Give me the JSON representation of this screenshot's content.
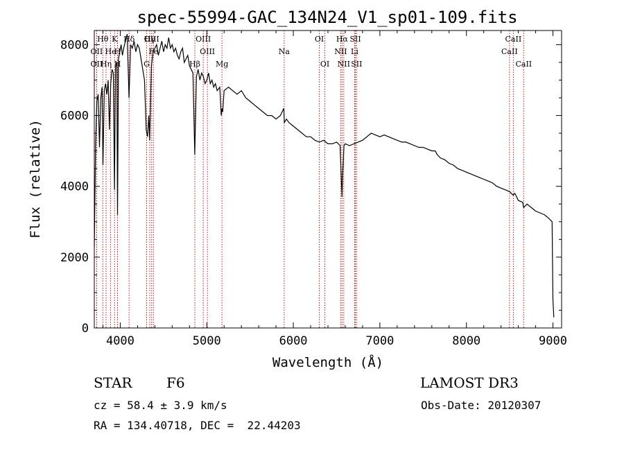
{
  "chart_data": {
    "type": "line",
    "title": "spec-55994-GAC_134N24_V1_sp01-109.fits",
    "xlabel": "Wavelength (Å)",
    "ylabel": "Flux (relative)",
    "xlim": [
      3700,
      9100
    ],
    "ylim": [
      0,
      8400
    ],
    "xticks": [
      4000,
      5000,
      6000,
      7000,
      8000,
      9000
    ],
    "yticks": [
      0,
      2000,
      4000,
      6000,
      8000
    ],
    "series": [
      {
        "name": "spectrum",
        "points": [
          [
            3700,
            2300
          ],
          [
            3715,
            5200
          ],
          [
            3730,
            6400
          ],
          [
            3745,
            6600
          ],
          [
            3760,
            5100
          ],
          [
            3775,
            6500
          ],
          [
            3790,
            6800
          ],
          [
            3800,
            4600
          ],
          [
            3815,
            6700
          ],
          [
            3830,
            6900
          ],
          [
            3845,
            6600
          ],
          [
            3860,
            7000
          ],
          [
            3875,
            5600
          ],
          [
            3890,
            6900
          ],
          [
            3905,
            7300
          ],
          [
            3920,
            7200
          ],
          [
            3933,
            3900
          ],
          [
            3945,
            7400
          ],
          [
            3960,
            7500
          ],
          [
            3968,
            3200
          ],
          [
            3980,
            7600
          ],
          [
            3995,
            7800
          ],
          [
            4010,
            8000
          ],
          [
            4025,
            7700
          ],
          [
            4040,
            7900
          ],
          [
            4060,
            8100
          ],
          [
            4080,
            8300
          ],
          [
            4101,
            6500
          ],
          [
            4120,
            8000
          ],
          [
            4140,
            7900
          ],
          [
            4160,
            8100
          ],
          [
            4180,
            7800
          ],
          [
            4200,
            8000
          ],
          [
            4220,
            7900
          ],
          [
            4240,
            7600
          ],
          [
            4260,
            7300
          ],
          [
            4280,
            7000
          ],
          [
            4300,
            5600
          ],
          [
            4315,
            5400
          ],
          [
            4330,
            6000
          ],
          [
            4340,
            5300
          ],
          [
            4360,
            7400
          ],
          [
            4380,
            7800
          ],
          [
            4400,
            7900
          ],
          [
            4420,
            8000
          ],
          [
            4440,
            7700
          ],
          [
            4460,
            7900
          ],
          [
            4480,
            8100
          ],
          [
            4500,
            7800
          ],
          [
            4520,
            8000
          ],
          [
            4540,
            7900
          ],
          [
            4560,
            8200
          ],
          [
            4580,
            7900
          ],
          [
            4600,
            8000
          ],
          [
            4620,
            7800
          ],
          [
            4640,
            7900
          ],
          [
            4660,
            7700
          ],
          [
            4680,
            7600
          ],
          [
            4700,
            7800
          ],
          [
            4720,
            7900
          ],
          [
            4740,
            7500
          ],
          [
            4760,
            7600
          ],
          [
            4780,
            7700
          ],
          [
            4800,
            7400
          ],
          [
            4820,
            7300
          ],
          [
            4840,
            7200
          ],
          [
            4861,
            4900
          ],
          [
            4880,
            7100
          ],
          [
            4900,
            7300
          ],
          [
            4920,
            7000
          ],
          [
            4940,
            7200
          ],
          [
            4960,
            7100
          ],
          [
            4980,
            6900
          ],
          [
            5000,
            7000
          ],
          [
            5020,
            7200
          ],
          [
            5040,
            6900
          ],
          [
            5060,
            7000
          ],
          [
            5080,
            6800
          ],
          [
            5100,
            6900
          ],
          [
            5120,
            6700
          ],
          [
            5150,
            6800
          ],
          [
            5167,
            6000
          ],
          [
            5175,
            6200
          ],
          [
            5184,
            6100
          ],
          [
            5200,
            6700
          ],
          [
            5250,
            6800
          ],
          [
            5300,
            6700
          ],
          [
            5350,
            6600
          ],
          [
            5400,
            6700
          ],
          [
            5450,
            6500
          ],
          [
            5500,
            6400
          ],
          [
            5550,
            6300
          ],
          [
            5600,
            6200
          ],
          [
            5650,
            6100
          ],
          [
            5700,
            6000
          ],
          [
            5750,
            6000
          ],
          [
            5800,
            5900
          ],
          [
            5850,
            6000
          ],
          [
            5890,
            6200
          ],
          [
            5896,
            5800
          ],
          [
            5920,
            5900
          ],
          [
            5950,
            5800
          ],
          [
            6000,
            5700
          ],
          [
            6050,
            5600
          ],
          [
            6100,
            5500
          ],
          [
            6150,
            5400
          ],
          [
            6200,
            5400
          ],
          [
            6250,
            5300
          ],
          [
            6300,
            5250
          ],
          [
            6350,
            5300
          ],
          [
            6400,
            5200
          ],
          [
            6450,
            5200
          ],
          [
            6500,
            5250
          ],
          [
            6540,
            5150
          ],
          [
            6555,
            4200
          ],
          [
            6563,
            3700
          ],
          [
            6570,
            4300
          ],
          [
            6585,
            5150
          ],
          [
            6600,
            5200
          ],
          [
            6650,
            5150
          ],
          [
            6700,
            5200
          ],
          [
            6750,
            5250
          ],
          [
            6800,
            5300
          ],
          [
            6850,
            5400
          ],
          [
            6900,
            5500
          ],
          [
            6950,
            5450
          ],
          [
            7000,
            5400
          ],
          [
            7050,
            5450
          ],
          [
            7100,
            5400
          ],
          [
            7150,
            5350
          ],
          [
            7200,
            5300
          ],
          [
            7250,
            5250
          ],
          [
            7300,
            5250
          ],
          [
            7350,
            5200
          ],
          [
            7400,
            5150
          ],
          [
            7450,
            5100
          ],
          [
            7500,
            5100
          ],
          [
            7550,
            5050
          ],
          [
            7600,
            5000
          ],
          [
            7640,
            5000
          ],
          [
            7660,
            4900
          ],
          [
            7700,
            4800
          ],
          [
            7750,
            4750
          ],
          [
            7800,
            4650
          ],
          [
            7850,
            4600
          ],
          [
            7900,
            4500
          ],
          [
            7950,
            4450
          ],
          [
            8000,
            4400
          ],
          [
            8050,
            4350
          ],
          [
            8100,
            4300
          ],
          [
            8150,
            4250
          ],
          [
            8200,
            4200
          ],
          [
            8250,
            4150
          ],
          [
            8300,
            4100
          ],
          [
            8350,
            4000
          ],
          [
            8400,
            3950
          ],
          [
            8450,
            3900
          ],
          [
            8500,
            3850
          ],
          [
            8540,
            3750
          ],
          [
            8560,
            3800
          ],
          [
            8600,
            3600
          ],
          [
            8650,
            3550
          ],
          [
            8662,
            3400
          ],
          [
            8700,
            3500
          ],
          [
            8750,
            3400
          ],
          [
            8800,
            3300
          ],
          [
            8850,
            3250
          ],
          [
            8900,
            3200
          ],
          [
            8950,
            3100
          ],
          [
            8990,
            3000
          ],
          [
            9000,
            800
          ],
          [
            9010,
            300
          ]
        ]
      }
    ],
    "lines": [
      {
        "label": "Hθ",
        "x": 3798,
        "row": 1
      },
      {
        "label": "OII",
        "x": 3727,
        "row": 2
      },
      {
        "label": "OII",
        "x": 3727,
        "row": 3
      },
      {
        "label": "Hη",
        "x": 3836,
        "row": 3
      },
      {
        "label": "He",
        "x": 3889,
        "row": 2
      },
      {
        "label": "K",
        "x": 3934,
        "row": 1
      },
      {
        "label": "H",
        "x": 3969,
        "row": 2
      },
      {
        "label": "H",
        "x": 3969,
        "row": 3
      },
      {
        "label": "Hδ",
        "x": 4102,
        "row": 1
      },
      {
        "label": "Hγ",
        "x": 4341,
        "row": 1
      },
      {
        "label": "OIII",
        "x": 4363,
        "row": 1
      },
      {
        "label": "Fe",
        "x": 4383,
        "row": 2
      },
      {
        "label": "G",
        "x": 4305,
        "row": 3
      },
      {
        "label": "Hβ",
        "x": 4862,
        "row": 3
      },
      {
        "label": "OIII",
        "x": 4959,
        "row": 1
      },
      {
        "label": "OIII",
        "x": 5007,
        "row": 2
      },
      {
        "label": "Mg",
        "x": 5175,
        "row": 3
      },
      {
        "label": "Na",
        "x": 5894,
        "row": 2
      },
      {
        "label": "OI",
        "x": 6300,
        "row": 1
      },
      {
        "label": "OI",
        "x": 6364,
        "row": 3
      },
      {
        "label": "Hα",
        "x": 6563,
        "row": 1
      },
      {
        "label": "NII",
        "x": 6548,
        "row": 2
      },
      {
        "label": "NII",
        "x": 6583,
        "row": 3
      },
      {
        "label": "SII",
        "x": 6717,
        "row": 1
      },
      {
        "label": "Li",
        "x": 6708,
        "row": 2
      },
      {
        "label": "SII",
        "x": 6731,
        "row": 3
      },
      {
        "label": "CaII",
        "x": 8542,
        "row": 1
      },
      {
        "label": "CaII",
        "x": 8498,
        "row": 2
      },
      {
        "label": "CaII",
        "x": 8662,
        "row": 3
      }
    ]
  },
  "info": {
    "class": "STAR",
    "subclass": "F6",
    "survey": "LAMOST DR3",
    "cz": "cz = 58.4 ± 3.9 km/s",
    "obs_date": "Obs-Date: 20120307",
    "radec": "RA = 134.40718, DEC =  22.44203"
  }
}
